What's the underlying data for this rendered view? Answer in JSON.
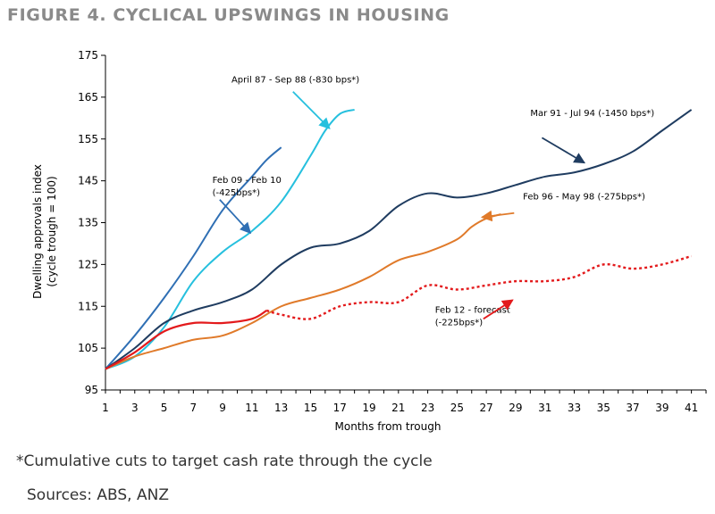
{
  "figure": {
    "title": "FIGURE 4. CYCLICAL UPSWINGS IN HOUSING",
    "footnote": "*Cumulative cuts to target cash rate through the cycle",
    "sources": "Sources: ABS, ANZ"
  },
  "chart_data": {
    "type": "line",
    "xlabel": "Months from trough",
    "ylabel": [
      "Dwelling approvals index",
      "(cycle trough = 100)"
    ],
    "xlim": [
      1,
      42
    ],
    "ylim": [
      95,
      175
    ],
    "xticks": [
      1,
      3,
      5,
      7,
      9,
      11,
      13,
      15,
      17,
      19,
      21,
      23,
      25,
      27,
      29,
      31,
      33,
      35,
      37,
      39,
      41
    ],
    "yticks": [
      95,
      105,
      115,
      125,
      135,
      145,
      155,
      165,
      175
    ],
    "grid": false,
    "series": [
      {
        "id": "feb09",
        "color": "#2f6fb4",
        "dash": "none",
        "x": [
          1,
          3,
          5,
          7,
          9,
          11,
          12,
          13
        ],
        "y": [
          100,
          108,
          117,
          127,
          138,
          146,
          150,
          153
        ]
      },
      {
        "id": "apr87",
        "color": "#26c0de",
        "dash": "none",
        "x": [
          1,
          3,
          5,
          7,
          9,
          11,
          13,
          15,
          16,
          17,
          18
        ],
        "y": [
          100,
          103,
          110,
          121,
          128,
          133,
          140,
          151,
          157,
          161,
          162
        ]
      },
      {
        "id": "mar91",
        "color": "#1f3c60",
        "dash": "none",
        "x": [
          1,
          3,
          5,
          7,
          9,
          11,
          13,
          15,
          17,
          19,
          21,
          23,
          25,
          27,
          29,
          31,
          33,
          35,
          37,
          39,
          41
        ],
        "y": [
          100,
          105,
          111,
          114,
          116,
          119,
          125,
          129,
          130,
          133,
          139,
          142,
          141,
          142,
          144,
          146,
          147,
          149,
          152,
          157,
          162
        ]
      },
      {
        "id": "feb96",
        "color": "#e07a2a",
        "dash": "none",
        "x": [
          1,
          3,
          5,
          7,
          9,
          11,
          13,
          15,
          17,
          19,
          21,
          23,
          25,
          26,
          27,
          28
        ],
        "y": [
          100,
          103,
          105,
          107,
          108,
          111,
          115,
          117,
          119,
          122,
          126,
          128,
          131,
          134,
          136,
          137
        ]
      },
      {
        "id": "feb12",
        "color": "#e31a1c",
        "dash": "solid-then-dotted",
        "solid_until_x": 12,
        "x": [
          1,
          3,
          5,
          7,
          9,
          11,
          12,
          13,
          15,
          17,
          19,
          21,
          23,
          25,
          27,
          29,
          31,
          33,
          35,
          37,
          39,
          41
        ],
        "y": [
          100,
          104,
          109,
          111,
          111,
          112,
          114,
          113,
          112,
          115,
          116,
          116,
          120,
          119,
          120,
          121,
          121,
          122,
          125,
          124,
          125,
          127
        ]
      }
    ],
    "annotations": [
      {
        "id": "feb09",
        "lines": [
          "Feb 09 - Feb 10",
          "(-425bps*)"
        ],
        "text_x": 8.3,
        "text_y": 144.5,
        "arrow_from": [
          8.8,
          140.5
        ],
        "arrow_to": [
          10.9,
          132.5
        ]
      },
      {
        "id": "apr87",
        "lines": [
          "April 87 - Sep 88 (-830 bps*)"
        ],
        "text_x": 9.6,
        "text_y": 168.5,
        "arrow_from": [
          13.8,
          166.3
        ],
        "arrow_to": [
          16.3,
          157.5
        ]
      },
      {
        "id": "mar91",
        "lines": [
          "Mar 91 - Jul 94 (-1450 bps*)"
        ],
        "text_x": 30,
        "text_y": 160.5,
        "arrow_from": [
          30.8,
          155.3
        ],
        "arrow_to": [
          33.7,
          149.3
        ]
      },
      {
        "id": "feb96",
        "lines": [
          "Feb 96 - May 98 (-275bps*)"
        ],
        "text_x": 29.5,
        "text_y": 140.5,
        "arrow_from": [
          28.9,
          137.3
        ],
        "arrow_to": [
          26.7,
          136.3
        ]
      },
      {
        "id": "feb12",
        "lines": [
          "Feb 12 - forecast",
          "(-225bps*)"
        ],
        "text_x": 23.5,
        "text_y": 113.5,
        "arrow_from": [
          26.8,
          112.0
        ],
        "arrow_to": [
          28.8,
          116.5
        ]
      }
    ]
  }
}
